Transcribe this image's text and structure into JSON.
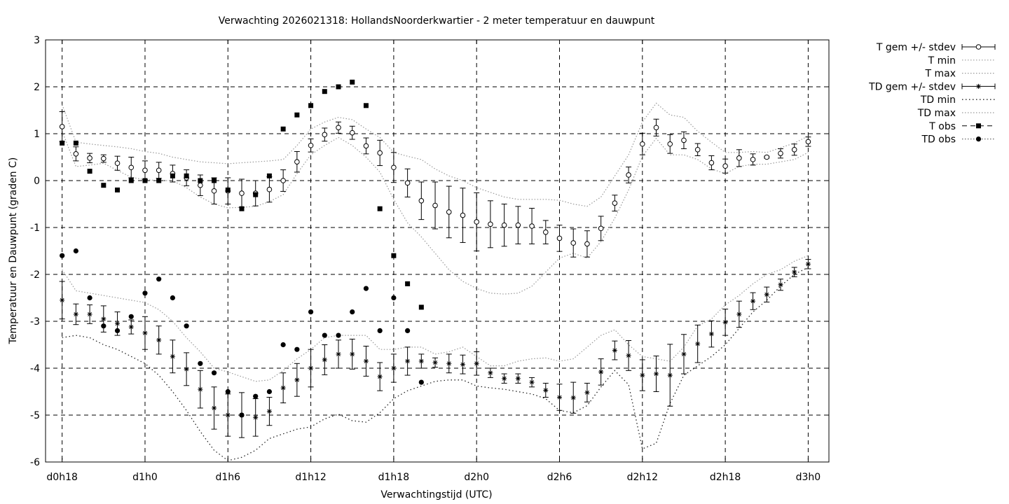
{
  "chart_data": {
    "type": "scatter",
    "title": "Verwachting 2026021318: HollandsNoorderkwartier - 2 meter temperatuur en dauwpunt",
    "xlabel": "Verwachtingstijd (UTC)",
    "ylabel": "Temperatuur en Dauwpunt (graden C)",
    "x_unit": "hours since d0h0",
    "xlim": [
      16.8,
      73.5
    ],
    "ylim": [
      -6,
      3
    ],
    "grid": true,
    "legend_position": "outside-right",
    "x_ticks": [
      {
        "x": 18,
        "label": "d0h18"
      },
      {
        "x": 24,
        "label": "d1h0"
      },
      {
        "x": 30,
        "label": "d1h6"
      },
      {
        "x": 36,
        "label": "d1h12"
      },
      {
        "x": 42,
        "label": "d1h18"
      },
      {
        "x": 48,
        "label": "d2h0"
      },
      {
        "x": 54,
        "label": "d2h6"
      },
      {
        "x": 60,
        "label": "d2h12"
      },
      {
        "x": 66,
        "label": "d2h18"
      },
      {
        "x": 72,
        "label": "d3h0"
      }
    ],
    "y_ticks": [
      {
        "y": 3,
        "label": "3"
      },
      {
        "y": 2,
        "label": "2"
      },
      {
        "y": 1,
        "label": "1"
      },
      {
        "y": 0,
        "label": "0"
      },
      {
        "y": -1,
        "label": "-1"
      },
      {
        "y": -2,
        "label": "-2"
      },
      {
        "y": -3,
        "label": "-3"
      },
      {
        "y": -4,
        "label": "-4"
      },
      {
        "y": -5,
        "label": "-5"
      },
      {
        "y": -6,
        "label": "-6"
      }
    ],
    "legend": [
      {
        "key": "t_mean",
        "label": "T gem +/- stdev"
      },
      {
        "key": "t_min",
        "label": "T min"
      },
      {
        "key": "t_max",
        "label": "T max"
      },
      {
        "key": "td_mean",
        "label": "TD gem +/- stdev"
      },
      {
        "key": "td_min",
        "label": "TD min"
      },
      {
        "key": "td_max",
        "label": "TD max"
      },
      {
        "key": "t_obs",
        "label": "T obs"
      },
      {
        "key": "td_obs",
        "label": "TD obs"
      }
    ],
    "series": {
      "t_mean": {
        "x": [
          18,
          19,
          20,
          21,
          22,
          23,
          24,
          25,
          26,
          27,
          28,
          29,
          30,
          31,
          32,
          33,
          34,
          35,
          36,
          37,
          38,
          39,
          40,
          41,
          42,
          43,
          44,
          45,
          46,
          47,
          48,
          49,
          50,
          51,
          52,
          53,
          54,
          55,
          56,
          57,
          58,
          59,
          60,
          61,
          62,
          63,
          64,
          65,
          66,
          67,
          68,
          69,
          70,
          71,
          72
        ],
        "y": [
          1.15,
          0.57,
          0.48,
          0.47,
          0.37,
          0.28,
          0.22,
          0.22,
          0.15,
          0.06,
          -0.1,
          -0.22,
          -0.22,
          -0.27,
          -0.27,
          -0.19,
          0.0,
          0.4,
          0.75,
          0.98,
          1.13,
          1.02,
          0.74,
          0.59,
          0.28,
          -0.05,
          -0.43,
          -0.53,
          -0.67,
          -0.74,
          -0.88,
          -0.93,
          -0.95,
          -0.95,
          -0.97,
          -1.1,
          -1.23,
          -1.33,
          -1.35,
          -1.02,
          -0.48,
          0.12,
          0.78,
          1.13,
          0.78,
          0.86,
          0.66,
          0.38,
          0.31,
          0.48,
          0.45,
          0.5,
          0.58,
          0.66,
          0.83
        ],
        "sd": [
          0.32,
          0.15,
          0.1,
          0.08,
          0.15,
          0.22,
          0.2,
          0.17,
          0.18,
          0.17,
          0.22,
          0.28,
          0.28,
          0.3,
          0.27,
          0.27,
          0.23,
          0.22,
          0.14,
          0.14,
          0.12,
          0.14,
          0.17,
          0.27,
          0.32,
          0.3,
          0.4,
          0.5,
          0.55,
          0.58,
          0.62,
          0.5,
          0.45,
          0.4,
          0.38,
          0.25,
          0.28,
          0.3,
          0.28,
          0.26,
          0.17,
          0.17,
          0.23,
          0.18,
          0.2,
          0.18,
          0.13,
          0.15,
          0.15,
          0.18,
          0.12,
          0.02,
          0.1,
          0.12,
          0.1
        ]
      },
      "t_min": {
        "x": [
          18,
          19,
          20,
          21,
          22,
          23,
          24,
          25,
          26,
          27,
          28,
          29,
          30,
          31,
          32,
          33,
          34,
          35,
          36,
          37,
          38,
          39,
          40,
          41,
          42,
          43,
          44,
          45,
          46,
          47,
          48,
          49,
          50,
          51,
          52,
          53,
          54,
          55,
          56,
          57,
          58,
          59,
          60,
          61,
          62,
          63,
          64,
          65,
          66,
          67,
          68,
          69,
          70,
          71,
          72
        ],
        "y": [
          1.05,
          0.3,
          0.33,
          0.37,
          0.22,
          0.07,
          0.02,
          0.0,
          0.0,
          -0.15,
          -0.35,
          -0.5,
          -0.58,
          -0.57,
          -0.55,
          -0.45,
          -0.3,
          0.15,
          0.55,
          0.75,
          0.92,
          0.75,
          0.5,
          0.18,
          -0.4,
          -0.9,
          -1.2,
          -1.55,
          -1.9,
          -2.15,
          -2.3,
          -2.4,
          -2.42,
          -2.4,
          -2.25,
          -1.95,
          -1.65,
          -1.55,
          -1.65,
          -1.3,
          -0.8,
          -0.2,
          0.52,
          0.9,
          0.55,
          0.55,
          0.45,
          0.25,
          0.15,
          0.3,
          0.35,
          0.35,
          0.4,
          0.45,
          0.6
        ]
      },
      "t_max": {
        "x": [
          18,
          19,
          20,
          21,
          22,
          23,
          24,
          25,
          26,
          27,
          28,
          29,
          30,
          31,
          32,
          33,
          34,
          35,
          36,
          37,
          38,
          39,
          40,
          41,
          42,
          43,
          44,
          45,
          46,
          47,
          48,
          49,
          50,
          51,
          52,
          53,
          54,
          55,
          56,
          57,
          58,
          59,
          60,
          61,
          62,
          63,
          64,
          65,
          66,
          67,
          68,
          69,
          70,
          71,
          72
        ],
        "y": [
          1.62,
          0.82,
          0.78,
          0.75,
          0.72,
          0.68,
          0.62,
          0.58,
          0.5,
          0.45,
          0.4,
          0.38,
          0.36,
          0.38,
          0.4,
          0.42,
          0.45,
          0.75,
          1.1,
          1.25,
          1.35,
          1.3,
          1.1,
          0.92,
          0.6,
          0.52,
          0.45,
          0.25,
          0.1,
          0.0,
          -0.15,
          -0.25,
          -0.35,
          -0.4,
          -0.4,
          -0.4,
          -0.42,
          -0.5,
          -0.55,
          -0.35,
          0.1,
          0.55,
          1.25,
          1.65,
          1.4,
          1.35,
          1.05,
          0.82,
          0.6,
          0.6,
          0.62,
          0.6,
          0.7,
          0.8,
          0.95
        ]
      },
      "td_mean": {
        "x": [
          18,
          19,
          20,
          21,
          22,
          23,
          24,
          25,
          26,
          27,
          28,
          29,
          30,
          31,
          32,
          33,
          34,
          35,
          36,
          37,
          38,
          39,
          40,
          41,
          42,
          43,
          44,
          45,
          46,
          47,
          48,
          49,
          50,
          51,
          52,
          53,
          54,
          55,
          56,
          57,
          58,
          59,
          60,
          61,
          62,
          63,
          64,
          65,
          66,
          67,
          68,
          69,
          70,
          71,
          72
        ],
        "y": [
          -2.55,
          -2.85,
          -2.85,
          -2.95,
          -3.05,
          -3.12,
          -3.25,
          -3.4,
          -3.75,
          -4.02,
          -4.45,
          -4.85,
          -5.0,
          -5.0,
          -5.05,
          -4.92,
          -4.42,
          -4.25,
          -4.0,
          -3.82,
          -3.7,
          -3.7,
          -3.85,
          -4.18,
          -4.0,
          -3.85,
          -3.85,
          -3.88,
          -3.9,
          -3.92,
          -3.9,
          -4.1,
          -4.22,
          -4.22,
          -4.3,
          -4.47,
          -4.62,
          -4.63,
          -4.52,
          -4.08,
          -3.62,
          -3.73,
          -4.15,
          -4.12,
          -4.15,
          -3.7,
          -3.48,
          -3.27,
          -3.02,
          -2.85,
          -2.57,
          -2.43,
          -2.22,
          -1.95,
          -1.78
        ]
      },
      "td_sd": {
        "x": [
          18,
          19,
          20,
          21,
          22,
          23,
          24,
          25,
          26,
          27,
          28,
          29,
          30,
          31,
          32,
          33,
          34,
          35,
          36,
          37,
          38,
          39,
          40,
          41,
          42,
          43,
          44,
          45,
          46,
          47,
          48,
          49,
          50,
          51,
          52,
          53,
          54,
          55,
          56,
          57,
          58,
          59,
          60,
          61,
          62,
          63,
          64,
          65,
          66,
          67,
          68,
          69,
          70,
          71,
          72
        ],
        "y": [
          0.4,
          0.22,
          0.2,
          0.28,
          0.25,
          0.15,
          0.35,
          0.3,
          0.35,
          0.35,
          0.4,
          0.45,
          0.45,
          0.48,
          0.4,
          0.3,
          0.32,
          0.35,
          0.4,
          0.32,
          0.3,
          0.32,
          0.32,
          0.3,
          0.3,
          0.3,
          0.15,
          0.1,
          0.2,
          0.2,
          0.25,
          0.1,
          0.1,
          0.1,
          0.1,
          0.15,
          0.28,
          0.33,
          0.2,
          0.28,
          0.2,
          0.32,
          0.33,
          0.38,
          0.66,
          0.42,
          0.4,
          0.28,
          0.28,
          0.28,
          0.18,
          0.16,
          0.12,
          0.1,
          0.1
        ]
      },
      "td_min": {
        "x": [
          18,
          19,
          20,
          21,
          22,
          23,
          24,
          25,
          26,
          27,
          28,
          29,
          30,
          31,
          32,
          33,
          34,
          35,
          36,
          37,
          38,
          39,
          40,
          41,
          42,
          43,
          44,
          45,
          46,
          47,
          48,
          49,
          50,
          51,
          52,
          53,
          54,
          55,
          56,
          57,
          58,
          59,
          60,
          61,
          62,
          63,
          64,
          65,
          66,
          67,
          68,
          69,
          70,
          71,
          72
        ],
        "y": [
          -3.35,
          -3.3,
          -3.35,
          -3.5,
          -3.6,
          -3.75,
          -3.9,
          -4.15,
          -4.5,
          -4.9,
          -5.35,
          -5.75,
          -5.97,
          -5.9,
          -5.75,
          -5.5,
          -5.4,
          -5.3,
          -5.25,
          -5.08,
          -4.98,
          -5.12,
          -5.15,
          -4.95,
          -4.65,
          -4.48,
          -4.38,
          -4.28,
          -4.25,
          -4.25,
          -4.38,
          -4.42,
          -4.45,
          -4.5,
          -4.55,
          -4.65,
          -4.9,
          -4.95,
          -4.8,
          -4.4,
          -4.05,
          -4.35,
          -5.72,
          -5.6,
          -4.75,
          -4.15,
          -3.95,
          -3.75,
          -3.5,
          -3.15,
          -2.8,
          -2.55,
          -2.25,
          -2.0,
          -1.85
        ]
      },
      "td_max": {
        "x": [
          18,
          19,
          20,
          21,
          22,
          23,
          24,
          25,
          26,
          27,
          28,
          29,
          30,
          31,
          32,
          33,
          34,
          35,
          36,
          37,
          38,
          39,
          40,
          41,
          42,
          43,
          44,
          45,
          46,
          47,
          48,
          49,
          50,
          51,
          52,
          53,
          54,
          55,
          56,
          57,
          58,
          59,
          60,
          61,
          62,
          63,
          64,
          65,
          66,
          67,
          68,
          69,
          70,
          71,
          72
        ],
        "y": [
          -1.9,
          -2.35,
          -2.4,
          -2.45,
          -2.5,
          -2.55,
          -2.6,
          -2.75,
          -3.0,
          -3.35,
          -3.65,
          -4.0,
          -4.08,
          -4.18,
          -4.28,
          -4.25,
          -4.05,
          -3.8,
          -3.6,
          -3.35,
          -3.3,
          -3.3,
          -3.3,
          -3.6,
          -3.6,
          -3.55,
          -3.55,
          -3.7,
          -3.65,
          -3.55,
          -3.75,
          -3.95,
          -3.95,
          -3.85,
          -3.8,
          -3.78,
          -3.85,
          -3.8,
          -3.55,
          -3.3,
          -3.18,
          -3.5,
          -3.75,
          -3.8,
          -3.85,
          -3.55,
          -3.1,
          -2.95,
          -2.65,
          -2.45,
          -2.2,
          -2.0,
          -1.9,
          -1.72,
          -1.6
        ]
      },
      "t_obs": {
        "x": [
          18,
          19,
          20,
          21,
          22,
          23,
          24,
          25,
          26,
          27,
          28,
          29,
          30,
          31,
          32,
          33,
          34,
          35,
          36,
          37,
          38,
          39,
          40,
          41,
          42,
          43,
          44
        ],
        "y": [
          0.8,
          0.8,
          0.2,
          -0.1,
          -0.2,
          0.0,
          0.0,
          0.0,
          0.1,
          0.1,
          0.0,
          0.0,
          -0.2,
          -0.6,
          -0.3,
          0.1,
          1.1,
          1.4,
          1.6,
          1.9,
          2.0,
          2.1,
          1.6,
          -0.6,
          -1.6,
          -2.2,
          -2.7
        ]
      },
      "td_obs": {
        "x": [
          18,
          19,
          20,
          21,
          22,
          23,
          24,
          25,
          26,
          27,
          28,
          29,
          30,
          31,
          32,
          33,
          34,
          35,
          36,
          37,
          38,
          39,
          40,
          41,
          42,
          43,
          44
        ],
        "y": [
          -1.6,
          -1.5,
          -2.5,
          -3.1,
          -3.2,
          -2.9,
          -2.4,
          -2.1,
          -2.5,
          -3.1,
          -3.9,
          -4.1,
          -4.5,
          -5.0,
          -4.6,
          -4.5,
          -3.5,
          -3.6,
          -2.8,
          -3.3,
          -3.3,
          -2.8,
          -2.3,
          -3.2,
          -2.5,
          -3.2,
          -4.3
        ]
      }
    }
  }
}
